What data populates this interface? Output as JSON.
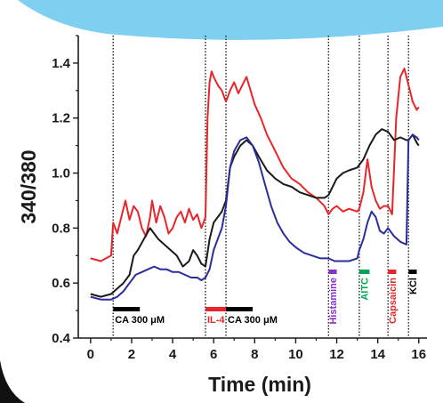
{
  "chart_data": {
    "type": "line",
    "xlabel": "Time (min)",
    "ylabel": "340/380",
    "xlim": [
      -0.6,
      16.4
    ],
    "ylim": [
      0.4,
      1.5
    ],
    "x_ticks": [
      0,
      2,
      4,
      6,
      8,
      10,
      12,
      14,
      16
    ],
    "y_ticks": [
      0.4,
      0.6,
      0.8,
      1.0,
      1.2,
      1.4
    ],
    "x_tick_labels": [
      "0",
      "2",
      "4",
      "6",
      "8",
      "10",
      "12",
      "14",
      "16"
    ],
    "y_tick_labels": [
      "0.4",
      "0.6",
      "0.8",
      "1.0",
      "1.2",
      "1.4"
    ],
    "grid": false,
    "legend": "none",
    "event_lines": [
      1.1,
      5.6,
      6.6,
      11.6,
      13.1,
      14.5,
      15.5
    ],
    "stimulus_bars": [
      {
        "label": "CA 300 μM",
        "start": 1.1,
        "end": 2.4,
        "color": "#000000",
        "orientation": "horizontal"
      },
      {
        "label": "IL-4",
        "start": 5.6,
        "end": 6.6,
        "color": "#e8262a",
        "orientation": "horizontal"
      },
      {
        "label": "CA 300 μM",
        "start": 6.6,
        "end": 7.9,
        "color": "#000000",
        "orientation": "horizontal"
      },
      {
        "label": "Histamine",
        "start": 11.6,
        "end": 12.0,
        "color": "#8b2fc9",
        "orientation": "vertical"
      },
      {
        "label": "AITC",
        "start": 13.1,
        "end": 13.6,
        "color": "#00a651",
        "orientation": "vertical"
      },
      {
        "label": "Capsaicin",
        "start": 14.5,
        "end": 14.9,
        "color": "#e8262a",
        "orientation": "vertical"
      },
      {
        "label": "KCl",
        "start": 15.5,
        "end": 15.9,
        "color": "#000000",
        "orientation": "vertical"
      }
    ],
    "series": [
      {
        "color": "#e8262a",
        "x": [
          0,
          0.5,
          1.0,
          1.1,
          1.3,
          1.5,
          1.7,
          1.9,
          2.1,
          2.3,
          2.5,
          2.7,
          2.9,
          3.0,
          3.2,
          3.4,
          3.6,
          3.8,
          4.0,
          4.2,
          4.4,
          4.6,
          4.8,
          5.0,
          5.2,
          5.4,
          5.6,
          5.7,
          5.8,
          5.9,
          6.0,
          6.2,
          6.4,
          6.6,
          6.8,
          7.0,
          7.2,
          7.4,
          7.6,
          7.8,
          8.0,
          8.3,
          8.6,
          9.0,
          9.4,
          9.8,
          10.2,
          10.6,
          11.0,
          11.4,
          11.6,
          11.8,
          12.0,
          12.3,
          12.6,
          13.0,
          13.1,
          13.3,
          13.5,
          13.7,
          13.9,
          14.1,
          14.3,
          14.5,
          14.7,
          14.9,
          15.1,
          15.3,
          15.5,
          15.7,
          15.9,
          16.0
        ],
        "y": [
          0.69,
          0.68,
          0.7,
          0.82,
          0.78,
          0.84,
          0.9,
          0.83,
          0.88,
          0.86,
          0.8,
          0.77,
          0.84,
          0.9,
          0.82,
          0.88,
          0.84,
          0.78,
          0.8,
          0.84,
          0.86,
          0.82,
          0.87,
          0.83,
          0.85,
          0.8,
          0.84,
          1.2,
          1.33,
          1.37,
          1.35,
          1.32,
          1.3,
          1.26,
          1.3,
          1.33,
          1.29,
          1.32,
          1.35,
          1.3,
          1.25,
          1.2,
          1.14,
          1.08,
          1.02,
          0.98,
          0.96,
          0.93,
          0.91,
          0.88,
          0.85,
          0.87,
          0.88,
          0.86,
          0.87,
          0.86,
          0.87,
          0.93,
          1.05,
          0.95,
          0.9,
          0.87,
          0.88,
          0.88,
          0.85,
          1.2,
          1.35,
          1.38,
          1.32,
          1.26,
          1.23,
          1.24
        ]
      },
      {
        "color": "#1a1a1a",
        "x": [
          0,
          0.5,
          1.0,
          1.3,
          1.6,
          1.9,
          2.1,
          2.3,
          2.6,
          2.9,
          3.1,
          3.3,
          3.6,
          3.9,
          4.2,
          4.5,
          4.8,
          5.0,
          5.2,
          5.4,
          5.6,
          5.8,
          6.0,
          6.2,
          6.4,
          6.6,
          6.8,
          7.0,
          7.3,
          7.6,
          7.9,
          8.2,
          8.6,
          9.0,
          9.4,
          9.8,
          10.2,
          10.6,
          11.0,
          11.4,
          11.6,
          11.8,
          12.0,
          12.3,
          12.6,
          13.0,
          13.3,
          13.6,
          13.9,
          14.2,
          14.5,
          14.8,
          15.1,
          15.4,
          15.5,
          15.7,
          15.9,
          16.0
        ],
        "y": [
          0.56,
          0.55,
          0.56,
          0.58,
          0.6,
          0.63,
          0.7,
          0.72,
          0.76,
          0.8,
          0.78,
          0.76,
          0.74,
          0.72,
          0.7,
          0.66,
          0.68,
          0.72,
          0.7,
          0.67,
          0.66,
          0.76,
          0.82,
          0.84,
          0.86,
          0.9,
          1.02,
          1.06,
          1.1,
          1.12,
          1.1,
          1.06,
          1.01,
          0.98,
          0.96,
          0.95,
          0.93,
          0.92,
          0.91,
          0.91,
          0.92,
          0.95,
          0.98,
          1.0,
          1.01,
          1.02,
          1.05,
          1.1,
          1.14,
          1.16,
          1.15,
          1.12,
          1.13,
          1.12,
          1.12,
          1.14,
          1.11,
          1.1
        ]
      },
      {
        "color": "#2b2d9e",
        "x": [
          0,
          0.5,
          1.0,
          1.3,
          1.6,
          1.9,
          2.2,
          2.5,
          2.8,
          3.1,
          3.4,
          3.7,
          4.0,
          4.3,
          4.6,
          4.9,
          5.2,
          5.4,
          5.6,
          5.8,
          6.0,
          6.2,
          6.4,
          6.6,
          6.8,
          7.0,
          7.3,
          7.6,
          7.9,
          8.2,
          8.5,
          8.8,
          9.1,
          9.4,
          9.7,
          10.0,
          10.4,
          10.8,
          11.2,
          11.6,
          11.9,
          12.2,
          12.6,
          13.0,
          13.1,
          13.3,
          13.5,
          13.7,
          13.9,
          14.1,
          14.3,
          14.5,
          14.8,
          15.1,
          15.4,
          15.5,
          15.7,
          15.9,
          16.0
        ],
        "y": [
          0.55,
          0.54,
          0.54,
          0.55,
          0.57,
          0.6,
          0.63,
          0.64,
          0.65,
          0.66,
          0.65,
          0.65,
          0.64,
          0.64,
          0.63,
          0.62,
          0.62,
          0.61,
          0.62,
          0.65,
          0.72,
          0.76,
          0.8,
          0.88,
          1.02,
          1.08,
          1.12,
          1.13,
          1.1,
          1.04,
          0.96,
          0.88,
          0.82,
          0.78,
          0.75,
          0.73,
          0.71,
          0.7,
          0.69,
          0.69,
          0.68,
          0.68,
          0.68,
          0.69,
          0.72,
          0.76,
          0.82,
          0.86,
          0.84,
          0.79,
          0.78,
          0.8,
          0.77,
          0.75,
          0.74,
          1.12,
          1.14,
          1.13,
          1.12
        ]
      }
    ]
  }
}
